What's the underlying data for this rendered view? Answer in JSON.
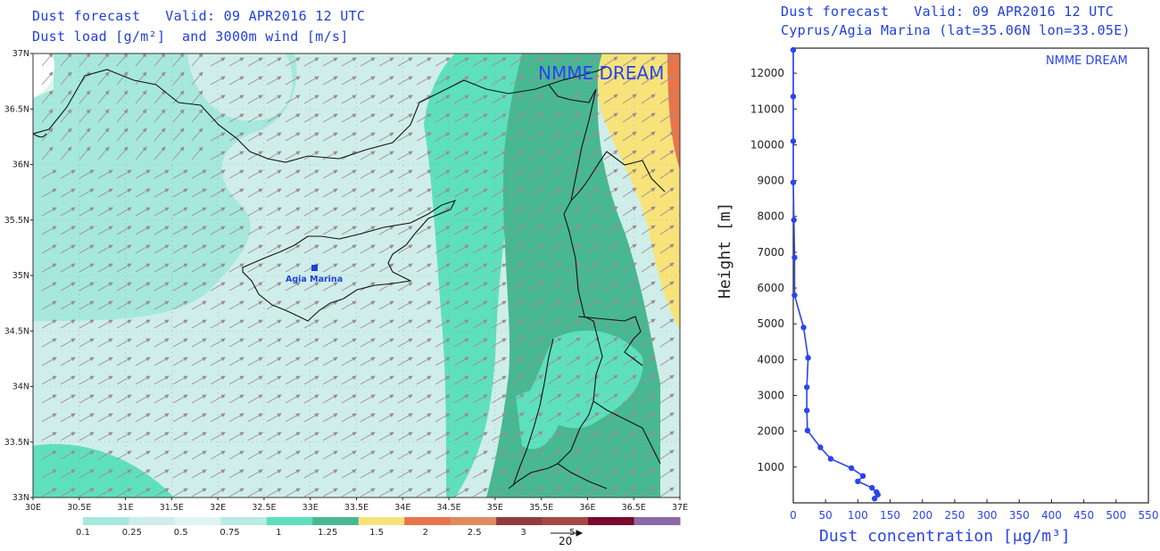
{
  "map_panel": {
    "title_line1": "Dust forecast   Valid: 09 APR2016 12 UTC",
    "title_line2": "Dust load [g/m²]  and 3000m wind [m/s]",
    "watermark": "NMME DREAM",
    "station_label": "Agia Marina",
    "lat_labels": [
      "37N",
      "36.5N",
      "36N",
      "35.5N",
      "35N",
      "34.5N",
      "34N",
      "33.5N",
      "33N"
    ],
    "lon_labels": [
      "30E",
      "30.5E",
      "31E",
      "31.5E",
      "32E",
      "32.5E",
      "33E",
      "33.5E",
      "34E",
      "34.5E",
      "35E",
      "35.5E",
      "36E",
      "36.5E",
      "37E"
    ],
    "legend": {
      "labels": [
        "0.1",
        "0.25",
        "0.5",
        "0.75",
        "1",
        "1.25",
        "1.5",
        "2",
        "2.5",
        "3",
        "5"
      ],
      "colors": [
        "#a6e8dc",
        "#cfeee9",
        "#e0f4f1",
        "#b8ebe3",
        "#5ee0bc",
        "#47b892",
        "#f7e37a",
        "#e8754a",
        "#df8a5f",
        "#8f3d3d",
        "#a54848",
        "#7a0a2e",
        "#8b6aa6"
      ],
      "wind_reference": "20"
    }
  },
  "profile_panel": {
    "title_line1": "Dust forecast   Valid: 09 APR2016 12 UTC",
    "title_line2": "Cyprus/Agia Marina (lat=35.06N lon=33.05E)",
    "watermark": "NMME DREAM",
    "ylabel": "Height [m]",
    "xlabel": "Dust concentration [μg/m³]",
    "line_color": "#2a44f0"
  },
  "chart_data": {
    "type": "line",
    "title": "",
    "xlabel": "Dust concentration [μg/m³]",
    "ylabel": "Height [m]",
    "xlim": [
      0,
      550
    ],
    "ylim": [
      0,
      12700
    ],
    "xticks": [
      0,
      50,
      100,
      150,
      200,
      250,
      300,
      350,
      400,
      450,
      500,
      550
    ],
    "yticks": [
      1000,
      2000,
      3000,
      4000,
      5000,
      6000,
      7000,
      8000,
      9000,
      10000,
      11000,
      12000
    ],
    "series": [
      {
        "x": [
          126,
          131,
          129,
          122,
          100,
          108,
          90,
          58,
          42,
          22,
          21,
          21,
          23,
          16,
          2,
          2,
          1,
          0,
          0,
          0,
          0,
          1
        ],
        "y": [
          120,
          230,
          300,
          420,
          600,
          750,
          970,
          1230,
          1550,
          2020,
          2580,
          3230,
          4050,
          4900,
          5800,
          6850,
          7900,
          8950,
          10100,
          11350,
          12650,
          12700
        ]
      }
    ]
  }
}
